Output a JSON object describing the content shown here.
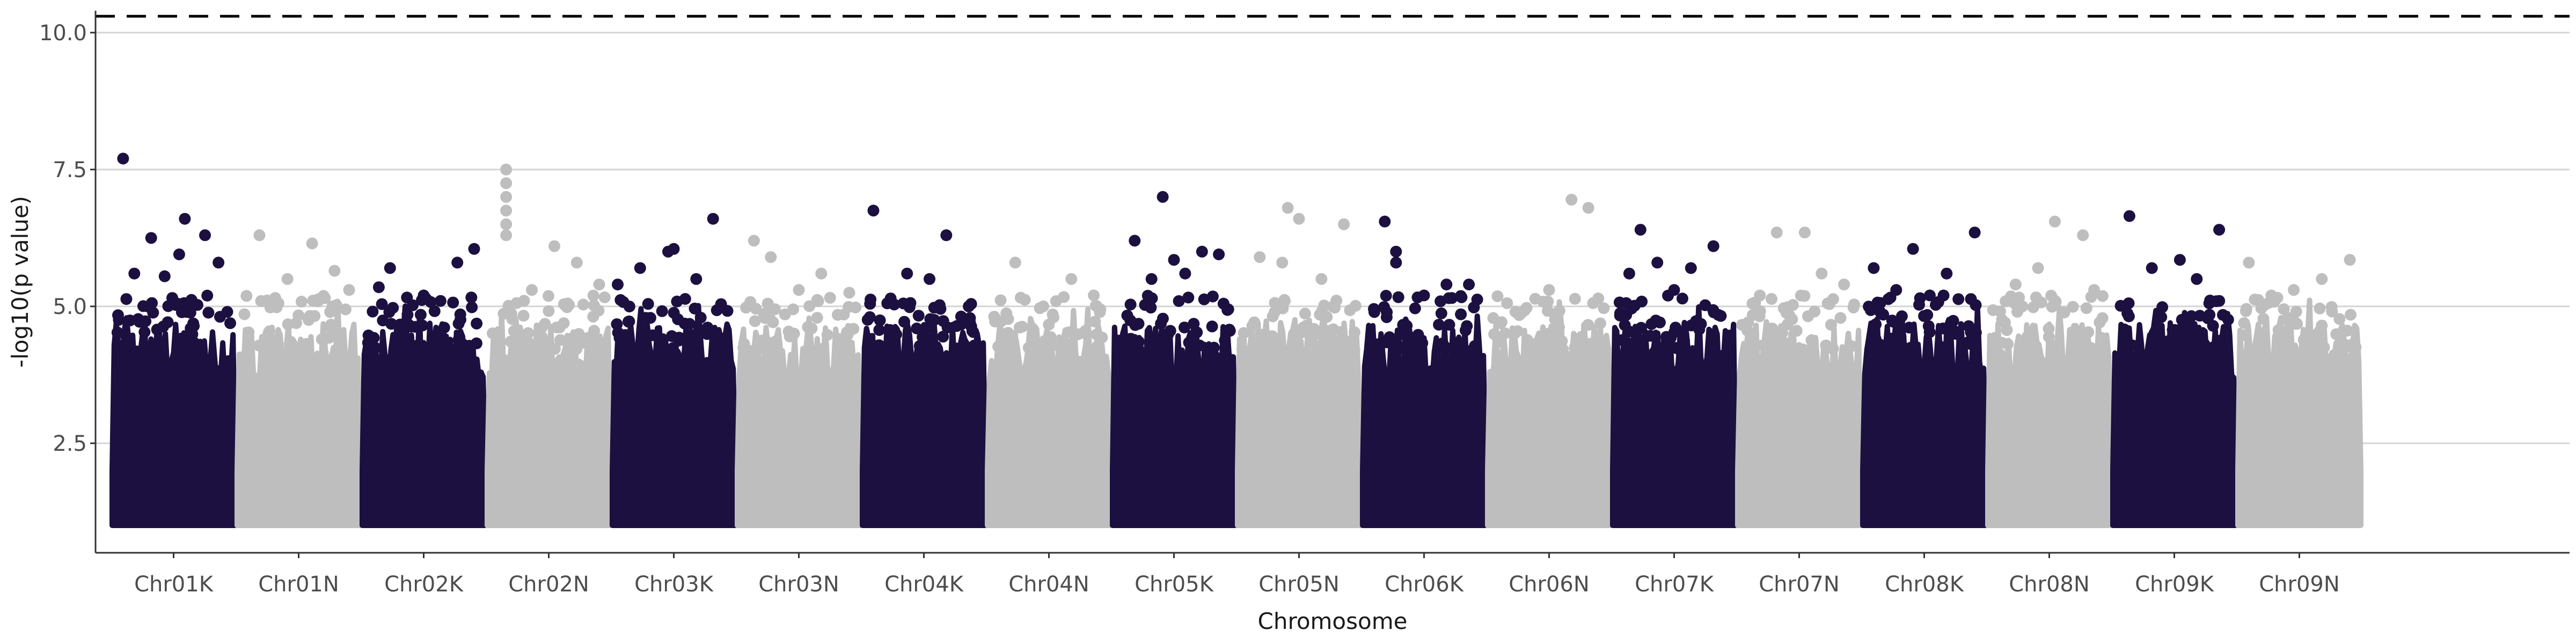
{
  "chart_data": {
    "type": "scatter",
    "title": "",
    "xlabel": "Chromosome",
    "ylabel": "-log10(p value)",
    "ylim": [
      0.5,
      10.4
    ],
    "yticks": [
      2.5,
      5.0,
      7.5,
      10.0
    ],
    "y_tick_labels": [
      "2.5",
      "5.0",
      "7.5",
      "10.0"
    ],
    "grid": {
      "y_major": true,
      "x_major": false
    },
    "legend": "none",
    "reference_lines": [
      {
        "y": 10.3,
        "style": "dashed",
        "color": "#000000"
      }
    ],
    "colors": {
      "odd": "#1c1040",
      "even": "#bebebe"
    },
    "categories": [
      "Chr01K",
      "Chr01N",
      "Chr02K",
      "Chr02N",
      "Chr03K",
      "Chr03N",
      "Chr04K",
      "Chr04N",
      "Chr05K",
      "Chr05N",
      "Chr06K",
      "Chr06N",
      "Chr07K",
      "Chr07N",
      "Chr08K",
      "Chr08N",
      "Chr09K",
      "Chr09N"
    ],
    "series": [
      {
        "category": "Chr01K",
        "points": [
          [
            0.05,
            7.7
          ],
          [
            0.3,
            6.25
          ],
          [
            0.6,
            6.6
          ],
          [
            0.78,
            6.3
          ],
          [
            0.55,
            5.95
          ],
          [
            0.9,
            5.8
          ],
          [
            0.15,
            5.6
          ],
          [
            0.42,
            5.55
          ]
        ]
      },
      {
        "category": "Chr01N",
        "points": [
          [
            0.15,
            6.3
          ],
          [
            0.62,
            6.15
          ],
          [
            0.82,
            5.65
          ],
          [
            0.4,
            5.5
          ],
          [
            0.95,
            5.3
          ]
        ]
      },
      {
        "category": "Chr02K",
        "points": [
          [
            0.2,
            5.7
          ],
          [
            0.95,
            6.05
          ],
          [
            0.8,
            5.8
          ],
          [
            0.5,
            5.2
          ],
          [
            0.1,
            5.35
          ],
          [
            0.65,
            5.1
          ]
        ]
      },
      {
        "category": "Chr02N",
        "points": [
          [
            0.12,
            7.5
          ],
          [
            0.12,
            7.25
          ],
          [
            0.12,
            7.0
          ],
          [
            0.12,
            6.75
          ],
          [
            0.12,
            6.5
          ],
          [
            0.12,
            6.3
          ],
          [
            0.55,
            6.1
          ],
          [
            0.75,
            5.8
          ],
          [
            0.35,
            5.3
          ],
          [
            0.95,
            5.4
          ]
        ]
      },
      {
        "category": "Chr03K",
        "points": [
          [
            0.85,
            6.6
          ],
          [
            0.45,
            6.0
          ],
          [
            0.5,
            6.05
          ],
          [
            0.2,
            5.7
          ],
          [
            0.0,
            5.4
          ],
          [
            0.7,
            5.5
          ]
        ]
      },
      {
        "category": "Chr03N",
        "points": [
          [
            0.1,
            6.2
          ],
          [
            0.25,
            5.9
          ],
          [
            0.7,
            5.6
          ],
          [
            0.5,
            5.3
          ],
          [
            0.95,
            5.25
          ]
        ]
      },
      {
        "category": "Chr04K",
        "points": [
          [
            0.05,
            6.75
          ],
          [
            0.7,
            6.3
          ],
          [
            0.35,
            5.6
          ],
          [
            0.55,
            5.5
          ],
          [
            0.9,
            5.0
          ]
        ]
      },
      {
        "category": "Chr04N",
        "points": [
          [
            0.2,
            5.8
          ],
          [
            0.7,
            5.5
          ],
          [
            0.9,
            5.2
          ],
          [
            0.45,
            5.0
          ]
        ]
      },
      {
        "category": "Chr05K",
        "points": [
          [
            0.4,
            7.0
          ],
          [
            0.15,
            6.2
          ],
          [
            0.75,
            6.0
          ],
          [
            0.9,
            5.95
          ],
          [
            0.5,
            5.85
          ],
          [
            0.6,
            5.6
          ],
          [
            0.3,
            5.5
          ]
        ]
      },
      {
        "category": "Chr05N",
        "points": [
          [
            0.4,
            6.8
          ],
          [
            0.5,
            6.6
          ],
          [
            0.9,
            6.5
          ],
          [
            0.15,
            5.9
          ],
          [
            0.35,
            5.8
          ],
          [
            0.7,
            5.5
          ]
        ]
      },
      {
        "category": "Chr06K",
        "points": [
          [
            0.15,
            6.55
          ],
          [
            0.25,
            6.0
          ],
          [
            0.25,
            5.8
          ],
          [
            0.7,
            5.4
          ],
          [
            0.9,
            5.4
          ],
          [
            0.5,
            5.2
          ]
        ]
      },
      {
        "category": "Chr06N",
        "points": [
          [
            0.7,
            6.95
          ],
          [
            0.85,
            6.8
          ],
          [
            0.5,
            5.3
          ],
          [
            0.2,
            4.9
          ]
        ]
      },
      {
        "category": "Chr07K",
        "points": [
          [
            0.2,
            6.4
          ],
          [
            0.35,
            5.8
          ],
          [
            0.85,
            6.1
          ],
          [
            0.65,
            5.7
          ],
          [
            0.1,
            5.6
          ],
          [
            0.5,
            5.3
          ]
        ]
      },
      {
        "category": "Chr07N",
        "points": [
          [
            0.3,
            6.35
          ],
          [
            0.55,
            6.35
          ],
          [
            0.7,
            5.6
          ],
          [
            0.9,
            5.4
          ],
          [
            0.15,
            5.2
          ]
        ]
      },
      {
        "category": "Chr08K",
        "points": [
          [
            0.05,
            5.7
          ],
          [
            0.4,
            6.05
          ],
          [
            0.95,
            6.35
          ],
          [
            0.7,
            5.6
          ],
          [
            0.25,
            5.3
          ],
          [
            0.55,
            5.2
          ]
        ]
      },
      {
        "category": "Chr08N",
        "points": [
          [
            0.55,
            6.55
          ],
          [
            0.8,
            6.3
          ],
          [
            0.4,
            5.7
          ],
          [
            0.2,
            5.4
          ],
          [
            0.9,
            5.3
          ]
        ]
      },
      {
        "category": "Chr09K",
        "points": [
          [
            0.1,
            6.65
          ],
          [
            0.9,
            6.4
          ],
          [
            0.55,
            5.85
          ],
          [
            0.3,
            5.7
          ],
          [
            0.7,
            5.5
          ]
        ]
      },
      {
        "category": "Chr09N",
        "points": [
          [
            0.95,
            5.85
          ],
          [
            0.05,
            5.8
          ],
          [
            0.45,
            5.3
          ],
          [
            0.7,
            5.5
          ],
          [
            0.25,
            5.2
          ]
        ]
      }
    ]
  }
}
